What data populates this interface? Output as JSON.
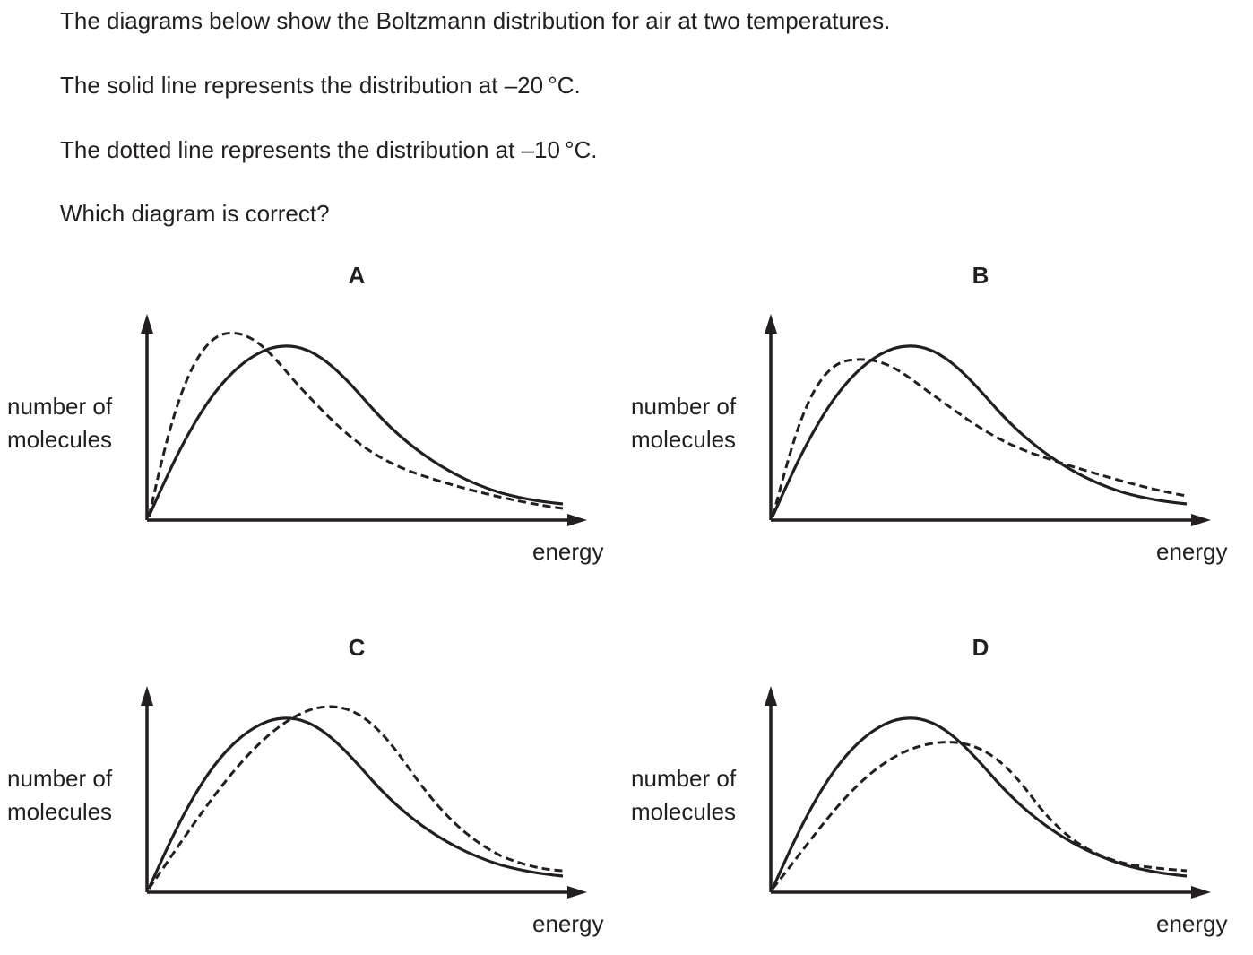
{
  "question": {
    "line1": "The diagrams below show the Boltzmann distribution for air at two temperatures.",
    "line2": "The solid line represents the distribution at –20 °C.",
    "line3": "The dotted line represents the distribution at –10 °C.",
    "line4": "Which diagram is correct?"
  },
  "axes": {
    "ylabel_line1": "number of",
    "ylabel_line2": "molecules",
    "xlabel": "energy"
  },
  "options": [
    {
      "label": "A",
      "solid": [
        [
          0,
          0
        ],
        [
          0.33,
          0.96
        ],
        [
          1,
          0.09
        ]
      ],
      "dotted": [
        [
          0,
          0
        ],
        [
          0.2,
          1.06
        ],
        [
          1,
          0.05
        ]
      ]
    },
    {
      "label": "B",
      "solid": [
        [
          0,
          0
        ],
        [
          0.33,
          0.96
        ],
        [
          1,
          0.09
        ]
      ],
      "dotted": [
        [
          0,
          0
        ],
        [
          0.26,
          0.91
        ],
        [
          1,
          0.13
        ]
      ]
    },
    {
      "label": "C",
      "solid": [
        [
          0,
          0
        ],
        [
          0.33,
          0.96
        ],
        [
          1,
          0.09
        ]
      ],
      "dotted": [
        [
          0,
          0
        ],
        [
          0.46,
          1.05
        ],
        [
          1,
          0.13
        ]
      ]
    },
    {
      "label": "D",
      "solid": [
        [
          0,
          0
        ],
        [
          0.33,
          0.96
        ],
        [
          1,
          0.09
        ]
      ],
      "dotted": [
        [
          0,
          0
        ],
        [
          0.45,
          0.84
        ],
        [
          1,
          0.13
        ]
      ]
    }
  ]
}
